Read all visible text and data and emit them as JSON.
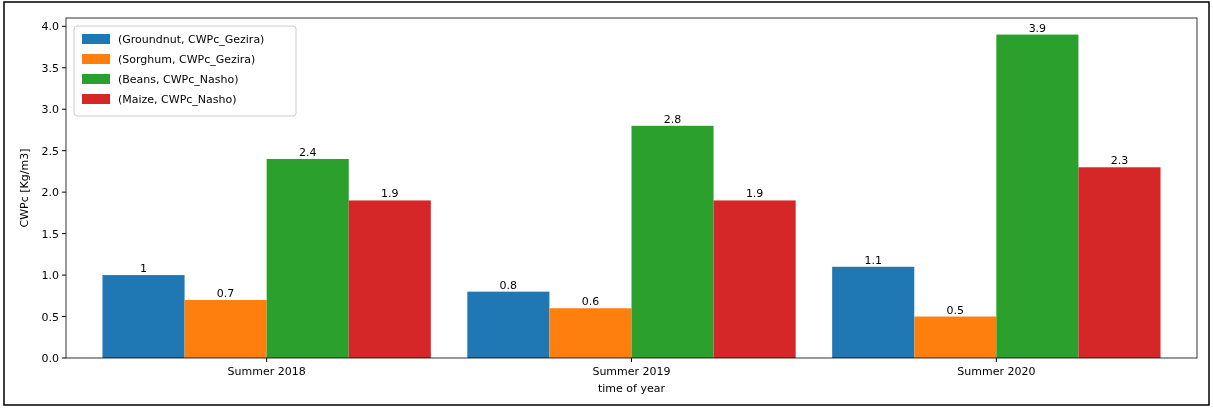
{
  "chart_data": {
    "type": "bar",
    "xlabel": "time of year",
    "ylabel": "CWPc [Kg/m3]",
    "categories": [
      "Summer 2018",
      "Summer 2019",
      "Summer 2020"
    ],
    "series": [
      {
        "name": "(Groundnut, CWPc_Gezira)",
        "color": "#1f77b4",
        "values": [
          1,
          0.8,
          1.1
        ]
      },
      {
        "name": "(Sorghum, CWPc_Gezira)",
        "color": "#ff7f0e",
        "values": [
          0.7,
          0.6,
          0.5
        ]
      },
      {
        "name": "(Beans, CWPc_Nasho)",
        "color": "#2ca02c",
        "values": [
          2.4,
          2.8,
          3.9
        ]
      },
      {
        "name": "(Maize, CWPc_Nasho)",
        "color": "#d62728",
        "values": [
          1.9,
          1.9,
          2.3
        ]
      }
    ],
    "ylim": [
      0,
      4.1
    ],
    "yticks": [
      {
        "value": 0,
        "label": "0.0"
      },
      {
        "value": 0.5,
        "label": "0.5"
      },
      {
        "value": 1,
        "label": "1.0"
      },
      {
        "value": 1.5,
        "label": "1.5"
      },
      {
        "value": 2,
        "label": "2.0"
      },
      {
        "value": 2.5,
        "label": "2.5"
      },
      {
        "value": 3,
        "label": "3.0"
      },
      {
        "value": 3.5,
        "label": "3.5"
      },
      {
        "value": 4,
        "label": "4.0"
      }
    ],
    "data_labels": true,
    "legend": "top left",
    "grid": false
  }
}
